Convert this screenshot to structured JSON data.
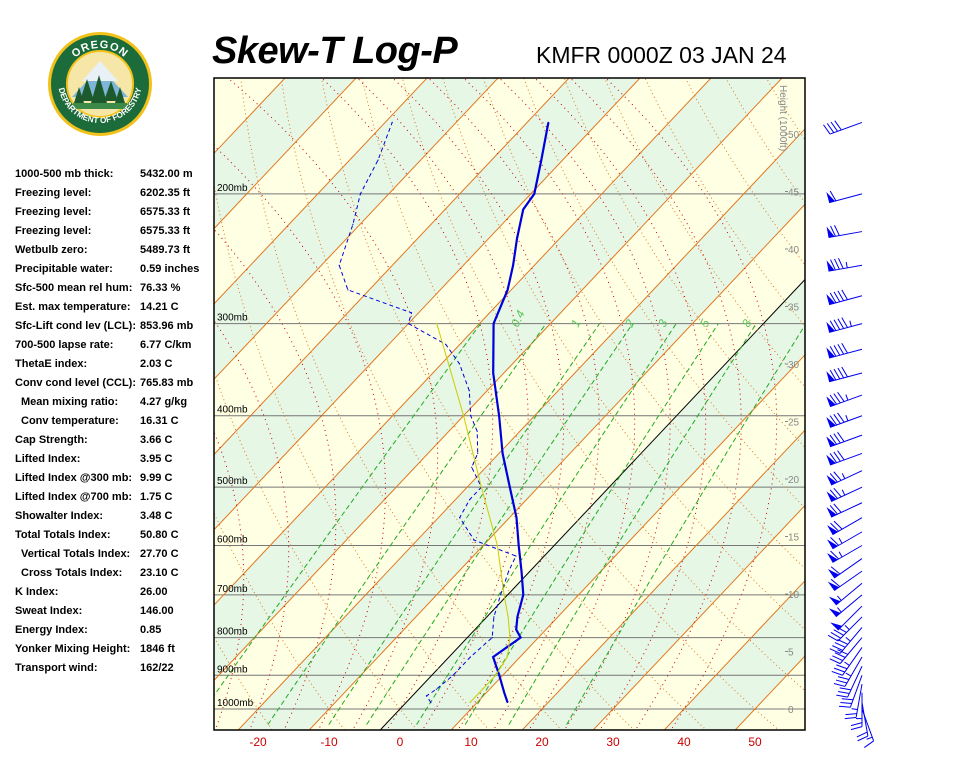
{
  "header": {
    "title": "Skew-T Log-P",
    "station_time": "KMFR 0000Z 03 JAN 24"
  },
  "logo": {
    "top_text": "OREGON",
    "bottom_text": "DEPARTMENT OF FORESTRY"
  },
  "indices": [
    {
      "label": "1000-500 mb thick:",
      "value": "5432.00 m"
    },
    {
      "label": "Freezing level:",
      "value": "6202.35 ft"
    },
    {
      "label": "Freezing level:",
      "value": "6575.33 ft"
    },
    {
      "label": "Freezing level:",
      "value": "6575.33 ft"
    },
    {
      "label": "Wetbulb zero:",
      "value": "5489.73 ft"
    },
    {
      "label": "Precipitable water:",
      "value": "0.59 inches"
    },
    {
      "label": "Sfc-500 mean rel hum:",
      "value": "76.33 %"
    },
    {
      "label": "Est. max temperature:",
      "value": "14.21 C"
    },
    {
      "label": "Sfc-Lift cond lev (LCL):",
      "value": "853.96 mb"
    },
    {
      "label": "700-500 lapse rate:",
      "value": "6.77 C/km"
    },
    {
      "label": "ThetaE index:",
      "value": "2.03 C"
    },
    {
      "label": "Conv cond level (CCL):",
      "value": "765.83 mb"
    },
    {
      "label": "Mean mixing ratio:",
      "value": "4.27 g/kg",
      "indent": true
    },
    {
      "label": "Conv temperature:",
      "value": "16.31 C",
      "indent": true
    },
    {
      "label": "Cap Strength:",
      "value": "3.66 C"
    },
    {
      "label": "Lifted Index:",
      "value": "3.95 C"
    },
    {
      "label": "Lifted Index @300 mb:",
      "value": "9.99 C"
    },
    {
      "label": "Lifted Index @700 mb:",
      "value": "1.75 C"
    },
    {
      "label": "Showalter Index:",
      "value": "3.48 C"
    },
    {
      "label": "Total Totals Index:",
      "value": "50.80 C"
    },
    {
      "label": "Vertical Totals Index:",
      "value": "27.70 C",
      "indent": true
    },
    {
      "label": "Cross Totals Index:",
      "value": "23.10 C",
      "indent": true
    },
    {
      "label": "K Index:",
      "value": "26.00"
    },
    {
      "label": "Sweat Index:",
      "value": "146.00"
    },
    {
      "label": "Energy Index:",
      "value": "0.85"
    },
    {
      "label": "Yonker Mixing Height:",
      "value": "1846 ft"
    },
    {
      "label": "Transport wind:",
      "value": "162/22"
    }
  ],
  "chart_data": {
    "type": "line",
    "title": "Skew-T Log-P",
    "subtitle": "KMFR 0000Z 03 JAN 24",
    "x_ticks": [
      -20,
      -10,
      0,
      10,
      20,
      30,
      40,
      50
    ],
    "x_unit": "C",
    "xlim": [
      -27,
      57
    ],
    "pressure_levels": [
      {
        "p": 200,
        "label": "200mb"
      },
      {
        "p": 300,
        "label": "300mb"
      },
      {
        "p": 400,
        "label": "400mb"
      },
      {
        "p": 500,
        "label": "500mb"
      },
      {
        "p": 600,
        "label": "600mb"
      },
      {
        "p": 700,
        "label": "700mb"
      },
      {
        "p": 800,
        "label": "800mb"
      },
      {
        "p": 900,
        "label": "900mb"
      },
      {
        "p": 1000,
        "label": "1000mb"
      }
    ],
    "height_axis": {
      "label": "Height (1000ft)",
      "ticks": [
        0,
        5,
        10,
        15,
        20,
        25,
        30,
        35,
        40,
        45,
        50
      ]
    },
    "mixing_ratio_labels": [
      "0.4",
      "1",
      "2",
      "3",
      "5",
      "8"
    ],
    "series": [
      {
        "role": "temperature",
        "color": "#0000dd",
        "points": [
          [
            980,
            14.3
          ],
          [
            950,
            12.5
          ],
          [
            900,
            9.5
          ],
          [
            850,
            6.2
          ],
          [
            800,
            7.5
          ],
          [
            780,
            5.8
          ],
          [
            750,
            4.3
          ],
          [
            700,
            2.2
          ],
          [
            650,
            -1.2
          ],
          [
            600,
            -5.0
          ],
          [
            550,
            -9.0
          ],
          [
            500,
            -14.0
          ],
          [
            450,
            -19.5
          ],
          [
            400,
            -25.0
          ],
          [
            350,
            -31.5
          ],
          [
            300,
            -38.0
          ],
          [
            270,
            -40.5
          ],
          [
            250,
            -43.0
          ],
          [
            230,
            -46.0
          ],
          [
            210,
            -49.0
          ],
          [
            200,
            -49.5
          ],
          [
            180,
            -53.0
          ],
          [
            160,
            -57.0
          ]
        ]
      },
      {
        "role": "dewpoint",
        "color": "#0000dd",
        "points": [
          [
            980,
            3.5
          ],
          [
            960,
            2.0
          ],
          [
            940,
            2.5
          ],
          [
            900,
            3.0
          ],
          [
            850,
            3.0
          ],
          [
            800,
            3.5
          ],
          [
            750,
            1.0
          ],
          [
            700,
            -1.0
          ],
          [
            650,
            -3.0
          ],
          [
            620,
            -4.0
          ],
          [
            590,
            -12.0
          ],
          [
            550,
            -17.0
          ],
          [
            520,
            -18.0
          ],
          [
            500,
            -18.0
          ],
          [
            470,
            -22.0
          ],
          [
            450,
            -23.0
          ],
          [
            420,
            -26.0
          ],
          [
            400,
            -29.0
          ],
          [
            370,
            -32.5
          ],
          [
            340,
            -37.5
          ],
          [
            320,
            -42.0
          ],
          [
            300,
            -50.0
          ],
          [
            290,
            -51.0
          ],
          [
            270,
            -63.0
          ],
          [
            250,
            -67.5
          ],
          [
            220,
            -71.0
          ],
          [
            200,
            -74.0
          ],
          [
            180,
            -76.0
          ],
          [
            160,
            -79.0
          ]
        ]
      },
      {
        "role": "parcel",
        "color": "#cccc00",
        "points": [
          [
            980,
            9.0
          ],
          [
            900,
            9.0
          ],
          [
            850,
            8.2
          ],
          [
            800,
            6.0
          ],
          [
            750,
            3.0
          ],
          [
            700,
            -0.5
          ],
          [
            600,
            -8.0
          ],
          [
            500,
            -18.0
          ],
          [
            400,
            -30.0
          ],
          [
            300,
            -46.0
          ]
        ]
      }
    ],
    "wind_barbs": [
      {
        "p": 1000,
        "dir": 160,
        "kt": 15
      },
      {
        "p": 980,
        "dir": 170,
        "kt": 20
      },
      {
        "p": 950,
        "dir": 180,
        "kt": 25
      },
      {
        "p": 925,
        "dir": 190,
        "kt": 25
      },
      {
        "p": 900,
        "dir": 200,
        "kt": 30
      },
      {
        "p": 875,
        "dir": 205,
        "kt": 30
      },
      {
        "p": 850,
        "dir": 210,
        "kt": 35
      },
      {
        "p": 825,
        "dir": 215,
        "kt": 35
      },
      {
        "p": 800,
        "dir": 220,
        "kt": 40
      },
      {
        "p": 775,
        "dir": 220,
        "kt": 45
      },
      {
        "p": 750,
        "dir": 225,
        "kt": 45
      },
      {
        "p": 725,
        "dir": 225,
        "kt": 50
      },
      {
        "p": 700,
        "dir": 230,
        "kt": 55
      },
      {
        "p": 675,
        "dir": 230,
        "kt": 55
      },
      {
        "p": 650,
        "dir": 235,
        "kt": 60
      },
      {
        "p": 625,
        "dir": 235,
        "kt": 60
      },
      {
        "p": 600,
        "dir": 240,
        "kt": 65
      },
      {
        "p": 575,
        "dir": 240,
        "kt": 65
      },
      {
        "p": 550,
        "dir": 240,
        "kt": 70
      },
      {
        "p": 525,
        "dir": 245,
        "kt": 70
      },
      {
        "p": 500,
        "dir": 245,
        "kt": 75
      },
      {
        "p": 475,
        "dir": 245,
        "kt": 75
      },
      {
        "p": 450,
        "dir": 250,
        "kt": 80
      },
      {
        "p": 425,
        "dir": 250,
        "kt": 80
      },
      {
        "p": 400,
        "dir": 250,
        "kt": 85
      },
      {
        "p": 375,
        "dir": 250,
        "kt": 85
      },
      {
        "p": 350,
        "dir": 255,
        "kt": 90
      },
      {
        "p": 325,
        "dir": 255,
        "kt": 90
      },
      {
        "p": 300,
        "dir": 255,
        "kt": 95
      },
      {
        "p": 275,
        "dir": 255,
        "kt": 90
      },
      {
        "p": 250,
        "dir": 260,
        "kt": 85
      },
      {
        "p": 225,
        "dir": 260,
        "kt": 70
      },
      {
        "p": 200,
        "dir": 255,
        "kt": 60
      },
      {
        "p": 160,
        "dir": 250,
        "kt": 40
      }
    ]
  },
  "colors": {
    "temperature_ticks": "#cc0000",
    "dry_adiabats": "#e07820",
    "isotherms": "#e07820",
    "moist_adiabats": "#cc0000",
    "mixing_ratio": "#22aa22",
    "profile": "#0000dd",
    "band_green": "#e6f7e6",
    "band_yellow": "#ffffe4"
  }
}
